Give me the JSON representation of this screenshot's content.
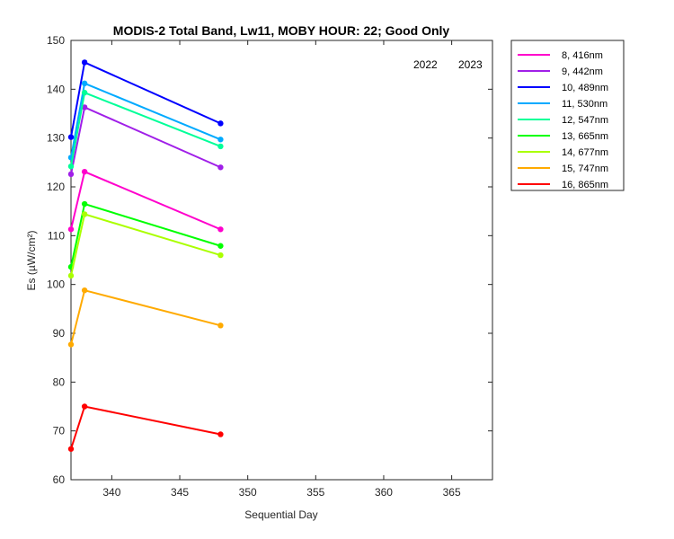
{
  "chart_data": {
    "type": "line",
    "title": "MODIS-2 Total Band,  Lw11, MOBY HOUR: 22;  Good Only",
    "xlabel": "Sequential Day",
    "ylabel": "Es (µW/cm²)",
    "xlim": [
      337,
      368
    ],
    "ylim": [
      60,
      150
    ],
    "xticks": [
      340,
      345,
      350,
      355,
      360,
      365
    ],
    "yticks": [
      60,
      70,
      80,
      90,
      100,
      110,
      120,
      130,
      140,
      150
    ],
    "grid": false,
    "legend_position": "outside-right",
    "annotations": [
      "2022",
      "2023"
    ],
    "x": [
      337,
      338,
      348
    ],
    "series": [
      {
        "name": "8, 416nm",
        "color": "#ff00cc",
        "values": [
          111.3,
          123.1,
          111.3
        ]
      },
      {
        "name": "9, 442nm",
        "color": "#a01fe8",
        "values": [
          122.6,
          136.3,
          124.0
        ]
      },
      {
        "name": "10, 489nm",
        "color": "#0000ff",
        "values": [
          130.2,
          145.5,
          133.0
        ]
      },
      {
        "name": "11, 530nm",
        "color": "#00aaff",
        "values": [
          126.0,
          141.2,
          129.7
        ]
      },
      {
        "name": "12, 547nm",
        "color": "#00ff99",
        "values": [
          124.2,
          139.3,
          128.3
        ]
      },
      {
        "name": "13, 665nm",
        "color": "#00ff00",
        "values": [
          103.6,
          116.5,
          107.9
        ]
      },
      {
        "name": "14, 677nm",
        "color": "#aaff00",
        "values": [
          101.8,
          114.4,
          106.0
        ]
      },
      {
        "name": "15, 747nm",
        "color": "#ffaa00",
        "values": [
          87.7,
          98.8,
          91.6
        ]
      },
      {
        "name": "16, 865nm",
        "color": "#ff0000",
        "values": [
          66.3,
          75.0,
          69.3
        ]
      }
    ]
  }
}
